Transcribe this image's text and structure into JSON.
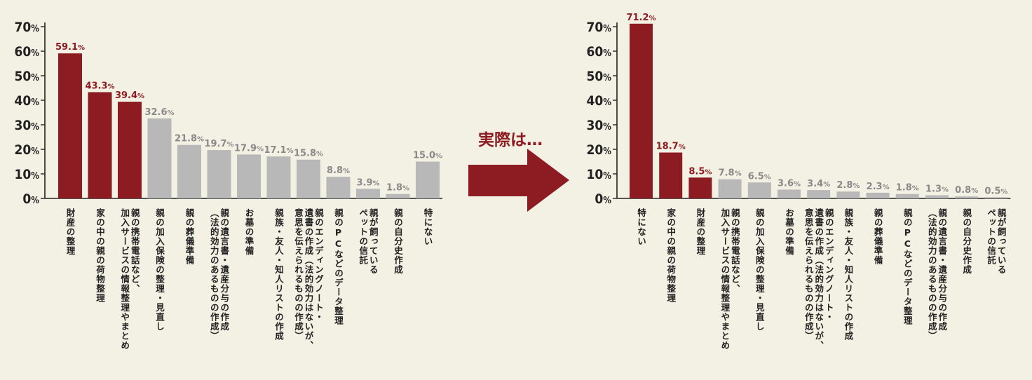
{
  "arrow_text": "実際は…",
  "colors": {
    "highlight": "#8c1c22",
    "normal": "#b8b8b8",
    "axis": "#222222",
    "background": "#f3f0e4"
  },
  "chart_data": [
    {
      "type": "bar",
      "ylim": [
        0,
        70
      ],
      "yticks": [
        "0%",
        "10%",
        "20%",
        "30%",
        "40%",
        "50%",
        "60%",
        "70%"
      ],
      "grid": false,
      "categories": [
        [
          "財産の整理"
        ],
        [
          "家の中の親の荷物整理"
        ],
        [
          "親の携帯電話など、",
          "加入サービスの情報整理やまとめ"
        ],
        [
          "親の加入保険の整理・見直し"
        ],
        [
          "親の葬儀準備"
        ],
        [
          "親の遺言書・遺産分与の作成",
          "（法的効力のあるものの作成）"
        ],
        [
          "お墓の準備"
        ],
        [
          "親族・友人・知人リストの作成"
        ],
        [
          "親のエンディングノート・",
          "遺書の作成（法的効力はないが、",
          "意思を伝えられるものの作成）"
        ],
        [
          "親のPCなどのデータ整理"
        ],
        [
          "親が飼っている",
          "ペットの信託"
        ],
        [
          "親の自分史作成"
        ],
        [
          "特にない"
        ]
      ],
      "values": [
        59.1,
        43.3,
        39.4,
        32.6,
        21.8,
        19.7,
        17.9,
        17.1,
        15.8,
        8.8,
        3.9,
        1.8,
        15.0
      ],
      "labels": [
        "59.1%",
        "43.3%",
        "39.4%",
        "32.6%",
        "21.8%",
        "19.7%",
        "17.9%",
        "17.1%",
        "15.8%",
        "8.8%",
        "3.9%",
        "1.8%",
        "15.0%"
      ],
      "highlighted": [
        0,
        1,
        2
      ]
    },
    {
      "type": "bar",
      "ylim": [
        0,
        70
      ],
      "yticks": [
        "0%",
        "10%",
        "20%",
        "30%",
        "40%",
        "50%",
        "60%",
        "70%"
      ],
      "grid": false,
      "categories": [
        [
          "特にない"
        ],
        [
          "家の中の親の荷物整理"
        ],
        [
          "財産の整理"
        ],
        [
          "親の携帯電話など、",
          "加入サービスの情報整理やまとめ"
        ],
        [
          "親の加入保険の整理・見直し"
        ],
        [
          "お墓の準備"
        ],
        [
          "親のエンディングノート・",
          "遺書の作成（法的効力はないが、",
          "意思を伝えられるものの作成）"
        ],
        [
          "親族・友人・知人リストの作成"
        ],
        [
          "親の葬儀準備"
        ],
        [
          "親のPCなどのデータ整理"
        ],
        [
          "親の遺言書・遺産分与の作成",
          "（法的効力のあるものの作成）"
        ],
        [
          "親の自分史作成"
        ],
        [
          "親が飼っている",
          "ペットの信託"
        ]
      ],
      "values": [
        71.2,
        18.7,
        8.5,
        7.8,
        6.5,
        3.6,
        3.4,
        2.8,
        2.3,
        1.8,
        1.3,
        0.8,
        0.5
      ],
      "labels": [
        "71.2%",
        "18.7%",
        "8.5%",
        "7.8%",
        "6.5%",
        "3.6%",
        "3.4%",
        "2.8%",
        "2.3%",
        "1.8%",
        "1.3%",
        "0.8%",
        "0.5%"
      ],
      "highlighted": [
        0,
        1,
        2
      ]
    }
  ]
}
